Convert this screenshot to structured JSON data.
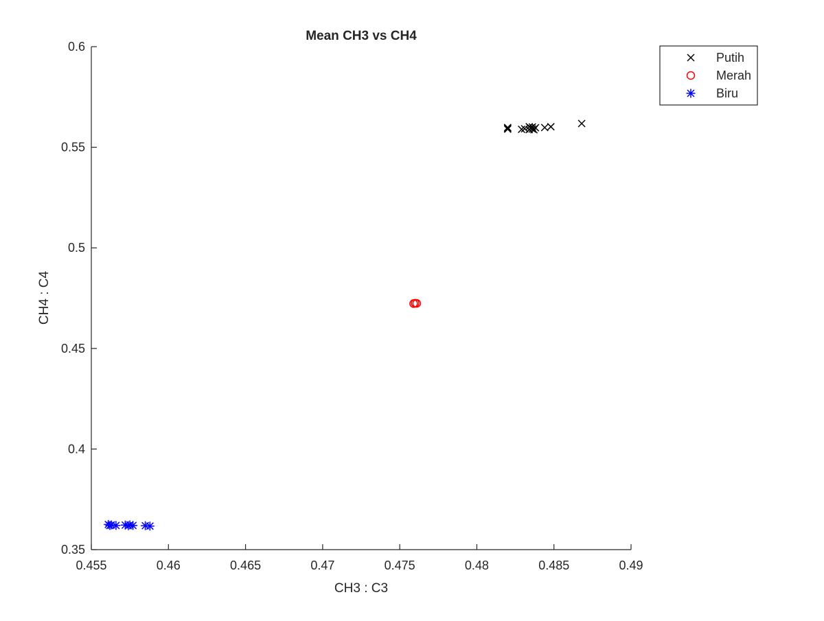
{
  "chart_data": {
    "type": "scatter",
    "title": "Mean CH3 vs CH4",
    "xlabel": "CH3 : C3",
    "ylabel": "CH4 : C4",
    "xlim": [
      0.455,
      0.49
    ],
    "ylim": [
      0.35,
      0.6
    ],
    "xticks": [
      0.455,
      0.46,
      0.465,
      0.47,
      0.475,
      0.48,
      0.485,
      0.49
    ],
    "xtick_labels": [
      "0.455",
      "0.46",
      "0.465",
      "0.47",
      "0.475",
      "0.48",
      "0.485",
      "0.49"
    ],
    "yticks": [
      0.35,
      0.4,
      0.45,
      0.5,
      0.55,
      0.6
    ],
    "ytick_labels": [
      "0.35",
      "0.4",
      "0.45",
      "0.5",
      "0.55",
      "0.6"
    ],
    "grid": false,
    "legend_position": "top-right",
    "series": [
      {
        "name": "Putih",
        "marker": "x",
        "color": "#000000",
        "x": [
          0.482,
          0.482,
          0.482,
          0.4829,
          0.4831,
          0.4834,
          0.4834,
          0.4835,
          0.4836,
          0.4836,
          0.4837,
          0.4838,
          0.4844,
          0.4848,
          0.4868
        ],
        "y": [
          0.559,
          0.5595,
          0.5598,
          0.5589,
          0.5592,
          0.5602,
          0.5588,
          0.5596,
          0.5591,
          0.5601,
          0.5587,
          0.5597,
          0.5598,
          0.5602,
          0.5618
        ]
      },
      {
        "name": "Merah",
        "marker": "o",
        "color": "#ff0000",
        "x": [
          0.4759,
          0.476,
          0.4761
        ],
        "y": [
          0.4723,
          0.4725,
          0.4724
        ]
      },
      {
        "name": "Biru",
        "marker": "*",
        "color": "#0000ff",
        "x": [
          0.4561,
          0.4562,
          0.4563,
          0.4566,
          0.4572,
          0.4574,
          0.4575,
          0.4577,
          0.4585,
          0.4588
        ],
        "y": [
          0.3625,
          0.362,
          0.3623,
          0.362,
          0.3622,
          0.3619,
          0.3623,
          0.362,
          0.3619,
          0.3617
        ]
      }
    ]
  }
}
